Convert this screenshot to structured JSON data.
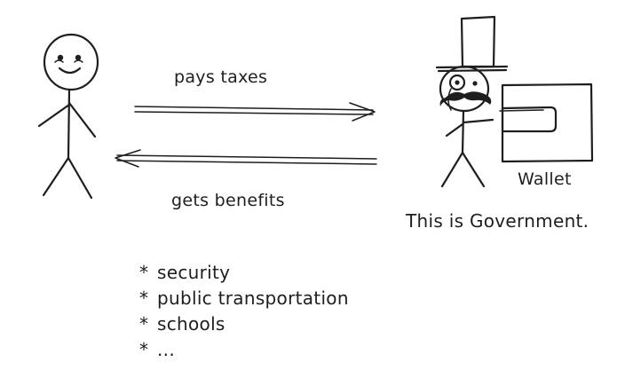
{
  "labels": {
    "pays_taxes": "pays taxes",
    "gets_benefits": "gets benefits",
    "wallet": "Wallet",
    "government": "This is Government."
  },
  "benefits": {
    "bullet": "*",
    "items": [
      "security",
      "public transportation",
      "schools",
      "..."
    ]
  },
  "icons": {
    "citizen": "stick-figure-smiling-icon",
    "government": "stick-figure-top-hat-monocle-icon",
    "wallet": "wallet-icon"
  },
  "colors": {
    "ink": "#1e1e1e",
    "background": "#ffffff"
  }
}
